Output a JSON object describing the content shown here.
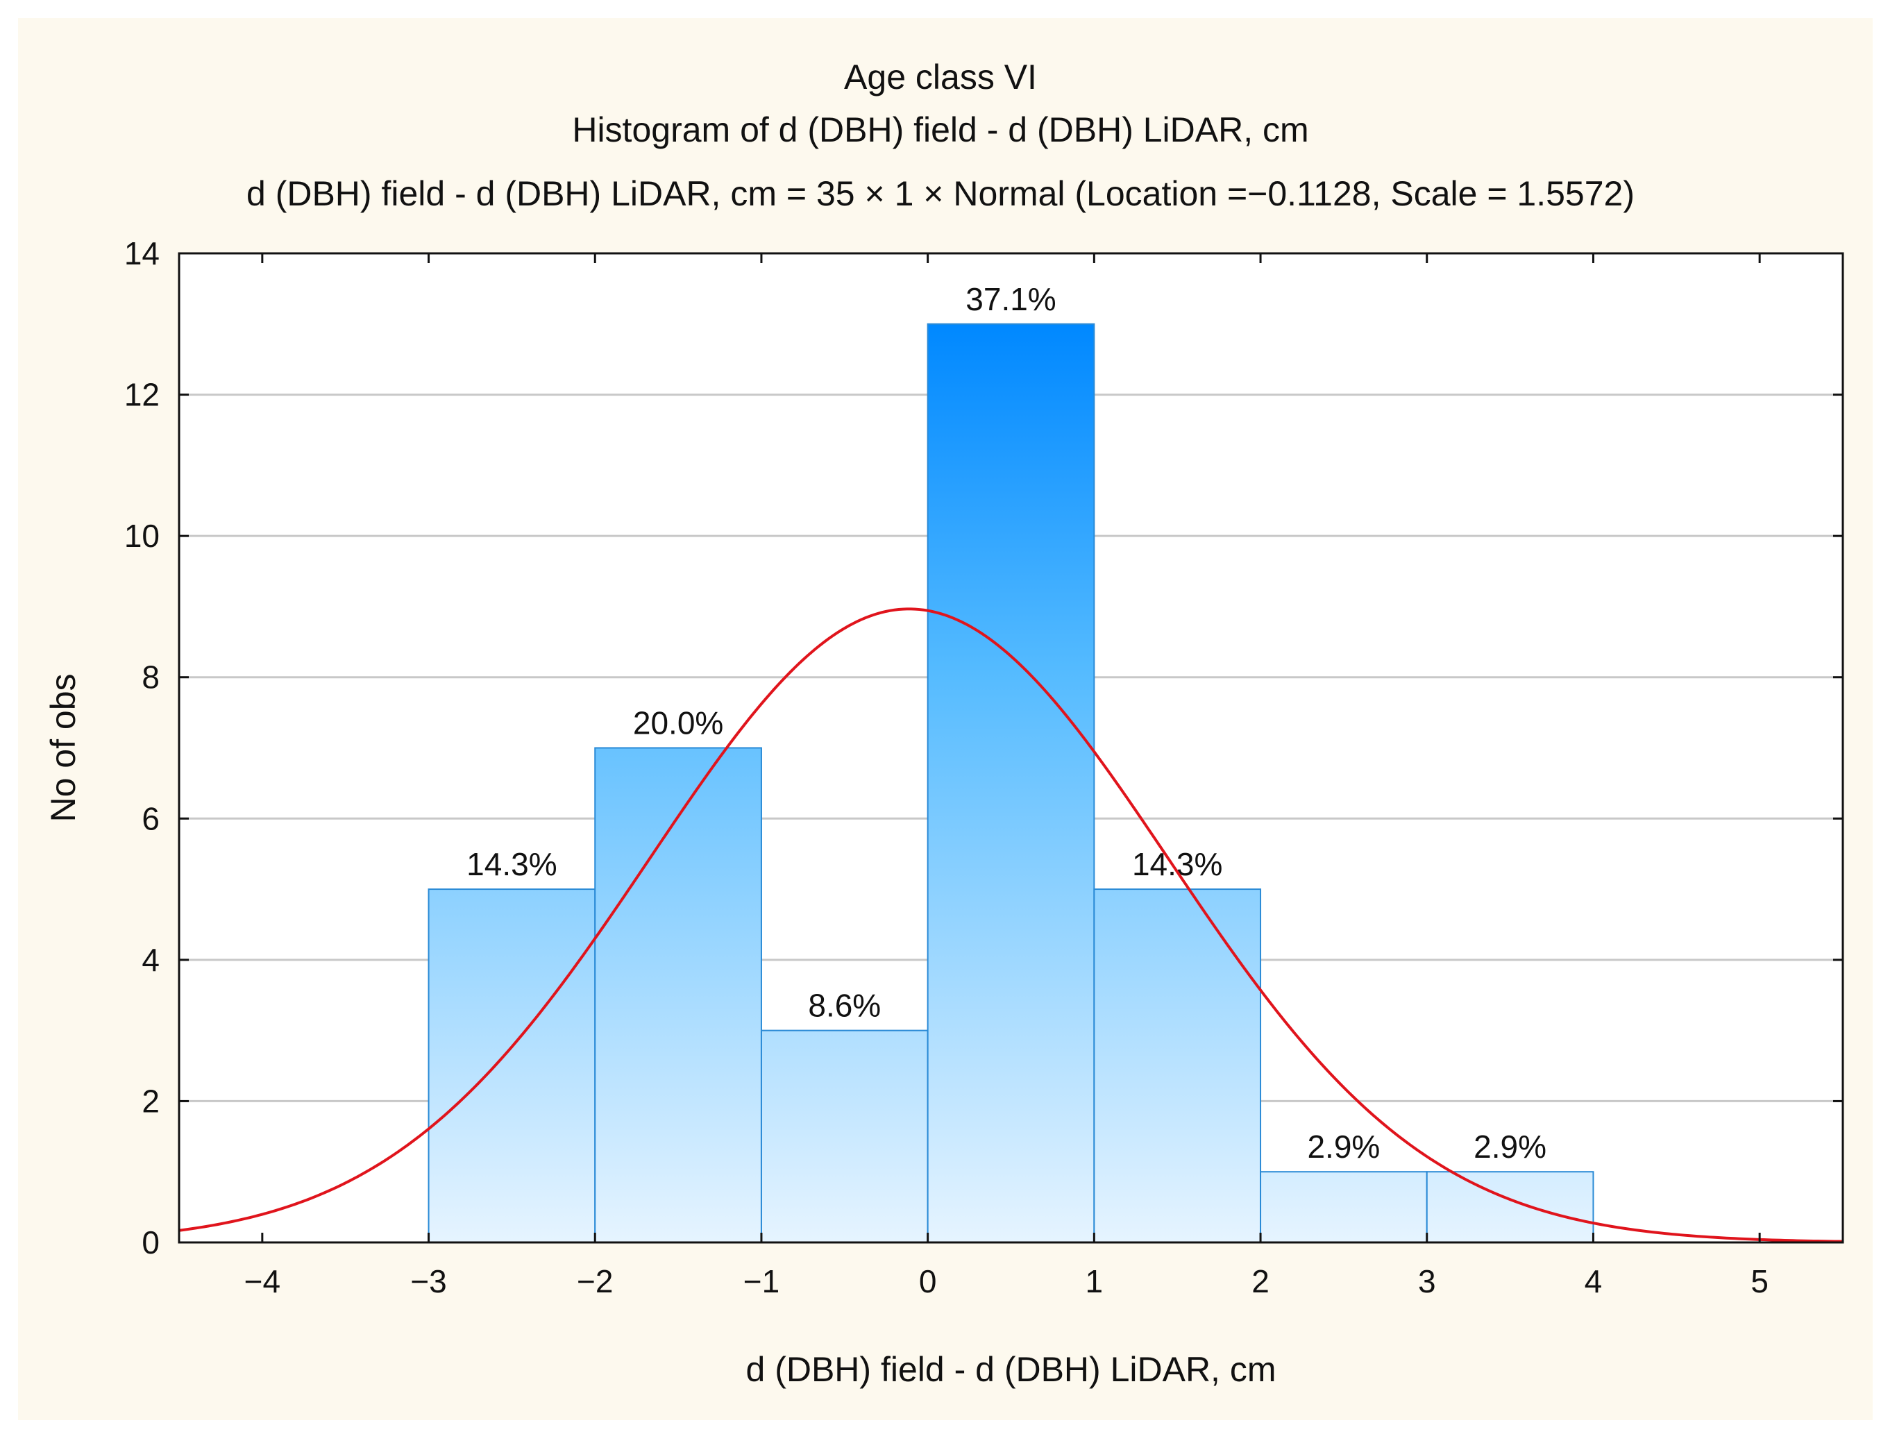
{
  "chart_data": {
    "type": "bar",
    "title": "Age class VI",
    "subtitle": "Histogram of d (DBH) field - d (DBH) LiDAR, cm",
    "fit_description": "d (DBH) field - d (DBH) LiDAR, cm = 35 × 1 × Normal (Location =−0.1128, Scale = 1.5572)",
    "xlabel": "d (DBH) field - d (DBH) LiDAR, cm",
    "ylabel": "No of obs",
    "xlim": [
      -4.5,
      5.5
    ],
    "ylim": [
      0,
      14
    ],
    "x_ticks": [
      -4,
      -3,
      -2,
      -1,
      0,
      1,
      2,
      3,
      4,
      5
    ],
    "x_tick_labels": [
      "−4",
      "−3",
      "−2",
      "−1",
      "0",
      "1",
      "2",
      "3",
      "4",
      "5"
    ],
    "y_ticks": [
      0,
      2,
      4,
      6,
      8,
      10,
      12,
      14
    ],
    "y_tick_labels": [
      "0",
      "2",
      "4",
      "6",
      "8",
      "10",
      "12",
      "14"
    ],
    "grid": true,
    "bins": [
      {
        "from": -3,
        "to": -2,
        "count": 5,
        "label": "14.3%"
      },
      {
        "from": -2,
        "to": -1,
        "count": 7,
        "label": "20.0%"
      },
      {
        "from": -1,
        "to": 0,
        "count": 3,
        "label": "8.6%"
      },
      {
        "from": 0,
        "to": 1,
        "count": 13,
        "label": "37.1%"
      },
      {
        "from": 1,
        "to": 2,
        "count": 5,
        "label": "14.3%"
      },
      {
        "from": 2,
        "to": 3,
        "count": 1,
        "label": "2.9%"
      },
      {
        "from": 3,
        "to": 4,
        "count": 1,
        "label": "2.9%"
      }
    ],
    "fit": {
      "distribution": "Normal",
      "n": 35,
      "bin_width": 1,
      "location": -0.1128,
      "scale": 1.5572
    }
  },
  "colors": {
    "bar_top": "#0088ff",
    "bar_mid": "#55bbff",
    "bar_bottom": "#e6f4ff",
    "bar_border": "#2a8ad6",
    "curve": "#e0141c",
    "grid": "#c8c8c8",
    "axis": "#111111",
    "background": "#fdf9ee"
  }
}
